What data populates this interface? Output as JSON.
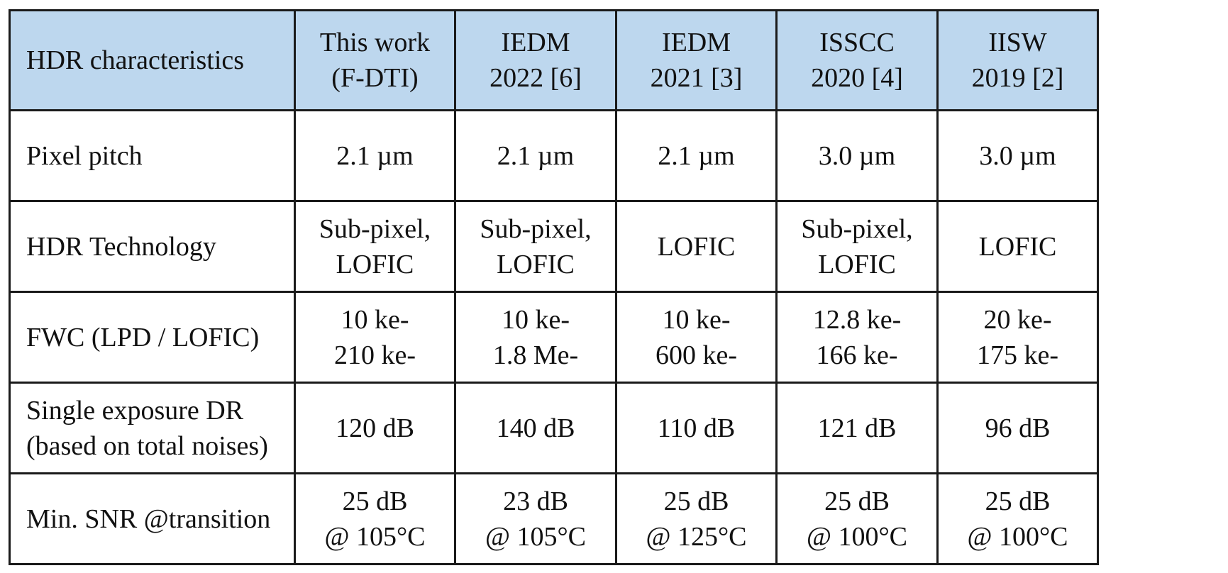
{
  "header": {
    "row_label": "HDR characteristics",
    "columns": [
      {
        "line1": "This work",
        "line2": "(F-DTI)"
      },
      {
        "line1": "IEDM",
        "line2": "2022 [6]"
      },
      {
        "line1": "IEDM",
        "line2": "2021 [3]"
      },
      {
        "line1": "ISSCC",
        "line2": "2020 [4]"
      },
      {
        "line1": "IISW",
        "line2": "2019 [2]"
      }
    ]
  },
  "rows": [
    {
      "label": [
        "Pixel pitch"
      ],
      "cells": [
        [
          "2.1 µm"
        ],
        [
          "2.1 µm"
        ],
        [
          "2.1 µm"
        ],
        [
          "3.0 µm"
        ],
        [
          "3.0 µm"
        ]
      ]
    },
    {
      "label": [
        "HDR Technology"
      ],
      "cells": [
        [
          "Sub-pixel,",
          "LOFIC"
        ],
        [
          "Sub-pixel,",
          "LOFIC"
        ],
        [
          "LOFIC"
        ],
        [
          "Sub-pixel,",
          "LOFIC"
        ],
        [
          "LOFIC"
        ]
      ]
    },
    {
      "label": [
        "FWC (LPD / LOFIC)"
      ],
      "cells": [
        [
          "10 ke-",
          "210 ke-"
        ],
        [
          "10 ke-",
          "1.8 Me-"
        ],
        [
          "10 ke-",
          "600 ke-"
        ],
        [
          "12.8 ke-",
          "166 ke-"
        ],
        [
          "20 ke-",
          "175 ke-"
        ]
      ]
    },
    {
      "label": [
        "Single exposure DR",
        "(based on total noises)"
      ],
      "cells": [
        [
          "120 dB"
        ],
        [
          "140 dB"
        ],
        [
          "110 dB"
        ],
        [
          "121 dB"
        ],
        [
          "96 dB"
        ]
      ]
    },
    {
      "label": [
        "Min. SNR @transition"
      ],
      "cells": [
        [
          "25 dB",
          "@ 105°C"
        ],
        [
          "23 dB",
          "@ 105°C"
        ],
        [
          "25 dB",
          "@ 125°C"
        ],
        [
          "25 dB",
          "@ 100°C"
        ],
        [
          "25 dB",
          "@ 100°C"
        ]
      ]
    }
  ]
}
